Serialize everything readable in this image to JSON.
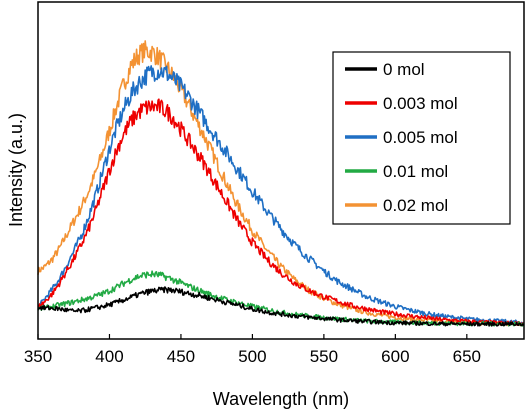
{
  "chart_data": {
    "type": "line",
    "title": "",
    "xlabel": "Wavelength (nm)",
    "ylabel": "Intensity (a.u.)",
    "xlim": [
      350,
      690
    ],
    "ylim": [
      0,
      100
    ],
    "x_ticks": [
      "350",
      "400",
      "450",
      "500",
      "550",
      "600",
      "650"
    ],
    "y_ticks_shown": false,
    "grid": false,
    "legend_position": "top-right",
    "series": [
      {
        "name": "0 mol",
        "color": "#000000",
        "points": [
          [
            350,
            5.5
          ],
          [
            355,
            5.3
          ],
          [
            360,
            5.2
          ],
          [
            365,
            5.0
          ],
          [
            370,
            4.6
          ],
          [
            375,
            4.2
          ],
          [
            380,
            4.3
          ],
          [
            385,
            4.8
          ],
          [
            390,
            5.3
          ],
          [
            395,
            5.8
          ],
          [
            400,
            6.4
          ],
          [
            405,
            7.1
          ],
          [
            410,
            8.0
          ],
          [
            415,
            8.8
          ],
          [
            420,
            9.7
          ],
          [
            425,
            10.4
          ],
          [
            430,
            10.9
          ],
          [
            435,
            11.2
          ],
          [
            440,
            11.3
          ],
          [
            445,
            11.1
          ],
          [
            450,
            10.7
          ],
          [
            455,
            10.2
          ],
          [
            460,
            9.7
          ],
          [
            465,
            9.2
          ],
          [
            470,
            8.6
          ],
          [
            475,
            8.0
          ],
          [
            480,
            7.4
          ],
          [
            485,
            6.8
          ],
          [
            490,
            6.2
          ],
          [
            495,
            5.6
          ],
          [
            500,
            5.0
          ],
          [
            510,
            4.0
          ],
          [
            520,
            3.3
          ],
          [
            530,
            2.7
          ],
          [
            540,
            2.2
          ],
          [
            550,
            1.8
          ],
          [
            560,
            1.4
          ],
          [
            570,
            1.1
          ],
          [
            580,
            0.8
          ],
          [
            590,
            0.6
          ],
          [
            600,
            0.4
          ],
          [
            620,
            0.2
          ],
          [
            640,
            0.05
          ],
          [
            660,
            0.0
          ],
          [
            690,
            0.0
          ]
        ]
      },
      {
        "name": "0.003 mol",
        "color": "#ee0000",
        "points": [
          [
            350,
            5.5
          ],
          [
            355,
            7.5
          ],
          [
            360,
            10.0
          ],
          [
            365,
            13.5
          ],
          [
            370,
            17.5
          ],
          [
            375,
            21.5
          ],
          [
            380,
            26.0
          ],
          [
            385,
            31.0
          ],
          [
            390,
            37.0
          ],
          [
            395,
            44.0
          ],
          [
            400,
            51.0
          ],
          [
            405,
            57.5
          ],
          [
            410,
            63.0
          ],
          [
            415,
            67.0
          ],
          [
            420,
            70.0
          ],
          [
            425,
            71.5
          ],
          [
            430,
            72.0
          ],
          [
            435,
            71.8
          ],
          [
            440,
            70.5
          ],
          [
            445,
            68.0
          ],
          [
            450,
            64.5
          ],
          [
            455,
            61.0
          ],
          [
            460,
            57.5
          ],
          [
            465,
            54.0
          ],
          [
            470,
            50.0
          ],
          [
            475,
            46.0
          ],
          [
            480,
            42.0
          ],
          [
            485,
            38.0
          ],
          [
            490,
            34.0
          ],
          [
            495,
            30.5
          ],
          [
            500,
            27.0
          ],
          [
            510,
            21.5
          ],
          [
            520,
            17.0
          ],
          [
            530,
            13.5
          ],
          [
            540,
            11.0
          ],
          [
            550,
            9.0
          ],
          [
            560,
            7.5
          ],
          [
            570,
            6.0
          ],
          [
            580,
            5.0
          ],
          [
            590,
            4.0
          ],
          [
            600,
            3.3
          ],
          [
            610,
            2.7
          ],
          [
            620,
            2.1
          ],
          [
            630,
            1.6
          ],
          [
            640,
            1.2
          ],
          [
            650,
            0.9
          ],
          [
            660,
            0.6
          ],
          [
            670,
            0.4
          ],
          [
            680,
            0.3
          ],
          [
            690,
            0.2
          ]
        ]
      },
      {
        "name": "0.005 mol",
        "color": "#1f6fc4",
        "points": [
          [
            350,
            5.5
          ],
          [
            355,
            8.5
          ],
          [
            360,
            11.5
          ],
          [
            365,
            15.0
          ],
          [
            370,
            19.5
          ],
          [
            375,
            24.0
          ],
          [
            380,
            29.0
          ],
          [
            385,
            35.0
          ],
          [
            390,
            42.0
          ],
          [
            395,
            50.0
          ],
          [
            400,
            58.0
          ],
          [
            405,
            65.0
          ],
          [
            410,
            71.0
          ],
          [
            415,
            76.0
          ],
          [
            420,
            79.5
          ],
          [
            425,
            82.0
          ],
          [
            430,
            83.5
          ],
          [
            435,
            84.0
          ],
          [
            440,
            83.0
          ],
          [
            445,
            81.0
          ],
          [
            450,
            78.5
          ],
          [
            455,
            75.5
          ],
          [
            460,
            72.0
          ],
          [
            465,
            68.5
          ],
          [
            470,
            65.0
          ],
          [
            475,
            61.5
          ],
          [
            480,
            58.0
          ],
          [
            485,
            54.5
          ],
          [
            490,
            51.0
          ],
          [
            495,
            47.5
          ],
          [
            500,
            44.0
          ],
          [
            510,
            37.5
          ],
          [
            520,
            31.5
          ],
          [
            530,
            26.0
          ],
          [
            540,
            21.5
          ],
          [
            550,
            17.5
          ],
          [
            560,
            14.0
          ],
          [
            570,
            11.5
          ],
          [
            580,
            9.0
          ],
          [
            590,
            7.3
          ],
          [
            600,
            5.8
          ],
          [
            610,
            4.6
          ],
          [
            620,
            3.6
          ],
          [
            630,
            2.8
          ],
          [
            640,
            2.2
          ],
          [
            650,
            1.7
          ],
          [
            660,
            1.3
          ],
          [
            670,
            1.0
          ],
          [
            680,
            0.7
          ],
          [
            690,
            0.5
          ]
        ]
      },
      {
        "name": "0.01 mol",
        "color": "#22aa44",
        "points": [
          [
            350,
            5.0
          ],
          [
            355,
            5.3
          ],
          [
            360,
            5.8
          ],
          [
            365,
            6.3
          ],
          [
            370,
            6.8
          ],
          [
            375,
            7.3
          ],
          [
            380,
            7.9
          ],
          [
            385,
            8.5
          ],
          [
            390,
            9.2
          ],
          [
            395,
            10.0
          ],
          [
            400,
            11.0
          ],
          [
            405,
            12.2
          ],
          [
            410,
            13.5
          ],
          [
            415,
            14.7
          ],
          [
            420,
            15.7
          ],
          [
            425,
            16.3
          ],
          [
            430,
            16.5
          ],
          [
            435,
            16.2
          ],
          [
            440,
            15.5
          ],
          [
            445,
            14.6
          ],
          [
            450,
            13.6
          ],
          [
            455,
            12.6
          ],
          [
            460,
            11.6
          ],
          [
            465,
            10.7
          ],
          [
            470,
            9.8
          ],
          [
            475,
            9.0
          ],
          [
            480,
            8.3
          ],
          [
            485,
            7.6
          ],
          [
            490,
            7.0
          ],
          [
            495,
            6.4
          ],
          [
            500,
            5.8
          ],
          [
            510,
            4.8
          ],
          [
            520,
            3.9
          ],
          [
            530,
            3.2
          ],
          [
            540,
            2.6
          ],
          [
            550,
            2.1
          ],
          [
            560,
            1.7
          ],
          [
            570,
            1.3
          ],
          [
            580,
            1.0
          ],
          [
            590,
            0.8
          ],
          [
            600,
            0.6
          ],
          [
            620,
            0.35
          ],
          [
            640,
            0.2
          ],
          [
            660,
            0.1
          ],
          [
            690,
            0.0
          ]
        ]
      },
      {
        "name": "0.02 mol",
        "color": "#f39233",
        "points": [
          [
            350,
            17.5
          ],
          [
            355,
            19.0
          ],
          [
            360,
            21.5
          ],
          [
            365,
            25.0
          ],
          [
            370,
            29.5
          ],
          [
            375,
            34.0
          ],
          [
            380,
            38.5
          ],
          [
            385,
            43.5
          ],
          [
            390,
            49.5
          ],
          [
            395,
            56.5
          ],
          [
            400,
            64.0
          ],
          [
            405,
            72.0
          ],
          [
            410,
            79.5
          ],
          [
            415,
            85.5
          ],
          [
            420,
            89.0
          ],
          [
            425,
            90.5
          ],
          [
            430,
            90.0
          ],
          [
            435,
            88.0
          ],
          [
            440,
            85.0
          ],
          [
            445,
            81.5
          ],
          [
            450,
            77.5
          ],
          [
            455,
            73.0
          ],
          [
            460,
            68.0
          ],
          [
            465,
            63.5
          ],
          [
            470,
            58.5
          ],
          [
            475,
            53.5
          ],
          [
            480,
            48.5
          ],
          [
            485,
            43.5
          ],
          [
            490,
            39.0
          ],
          [
            495,
            35.0
          ],
          [
            500,
            31.0
          ],
          [
            510,
            24.5
          ],
          [
            520,
            19.0
          ],
          [
            530,
            14.5
          ],
          [
            540,
            11.0
          ],
          [
            550,
            8.5
          ],
          [
            560,
            6.5
          ],
          [
            570,
            5.0
          ],
          [
            580,
            3.8
          ],
          [
            590,
            2.9
          ],
          [
            600,
            2.2
          ],
          [
            610,
            1.7
          ],
          [
            620,
            1.3
          ],
          [
            630,
            1.0
          ],
          [
            640,
            0.7
          ],
          [
            650,
            0.5
          ],
          [
            660,
            0.35
          ],
          [
            670,
            0.25
          ],
          [
            680,
            0.15
          ],
          [
            690,
            0.1
          ]
        ]
      }
    ]
  }
}
